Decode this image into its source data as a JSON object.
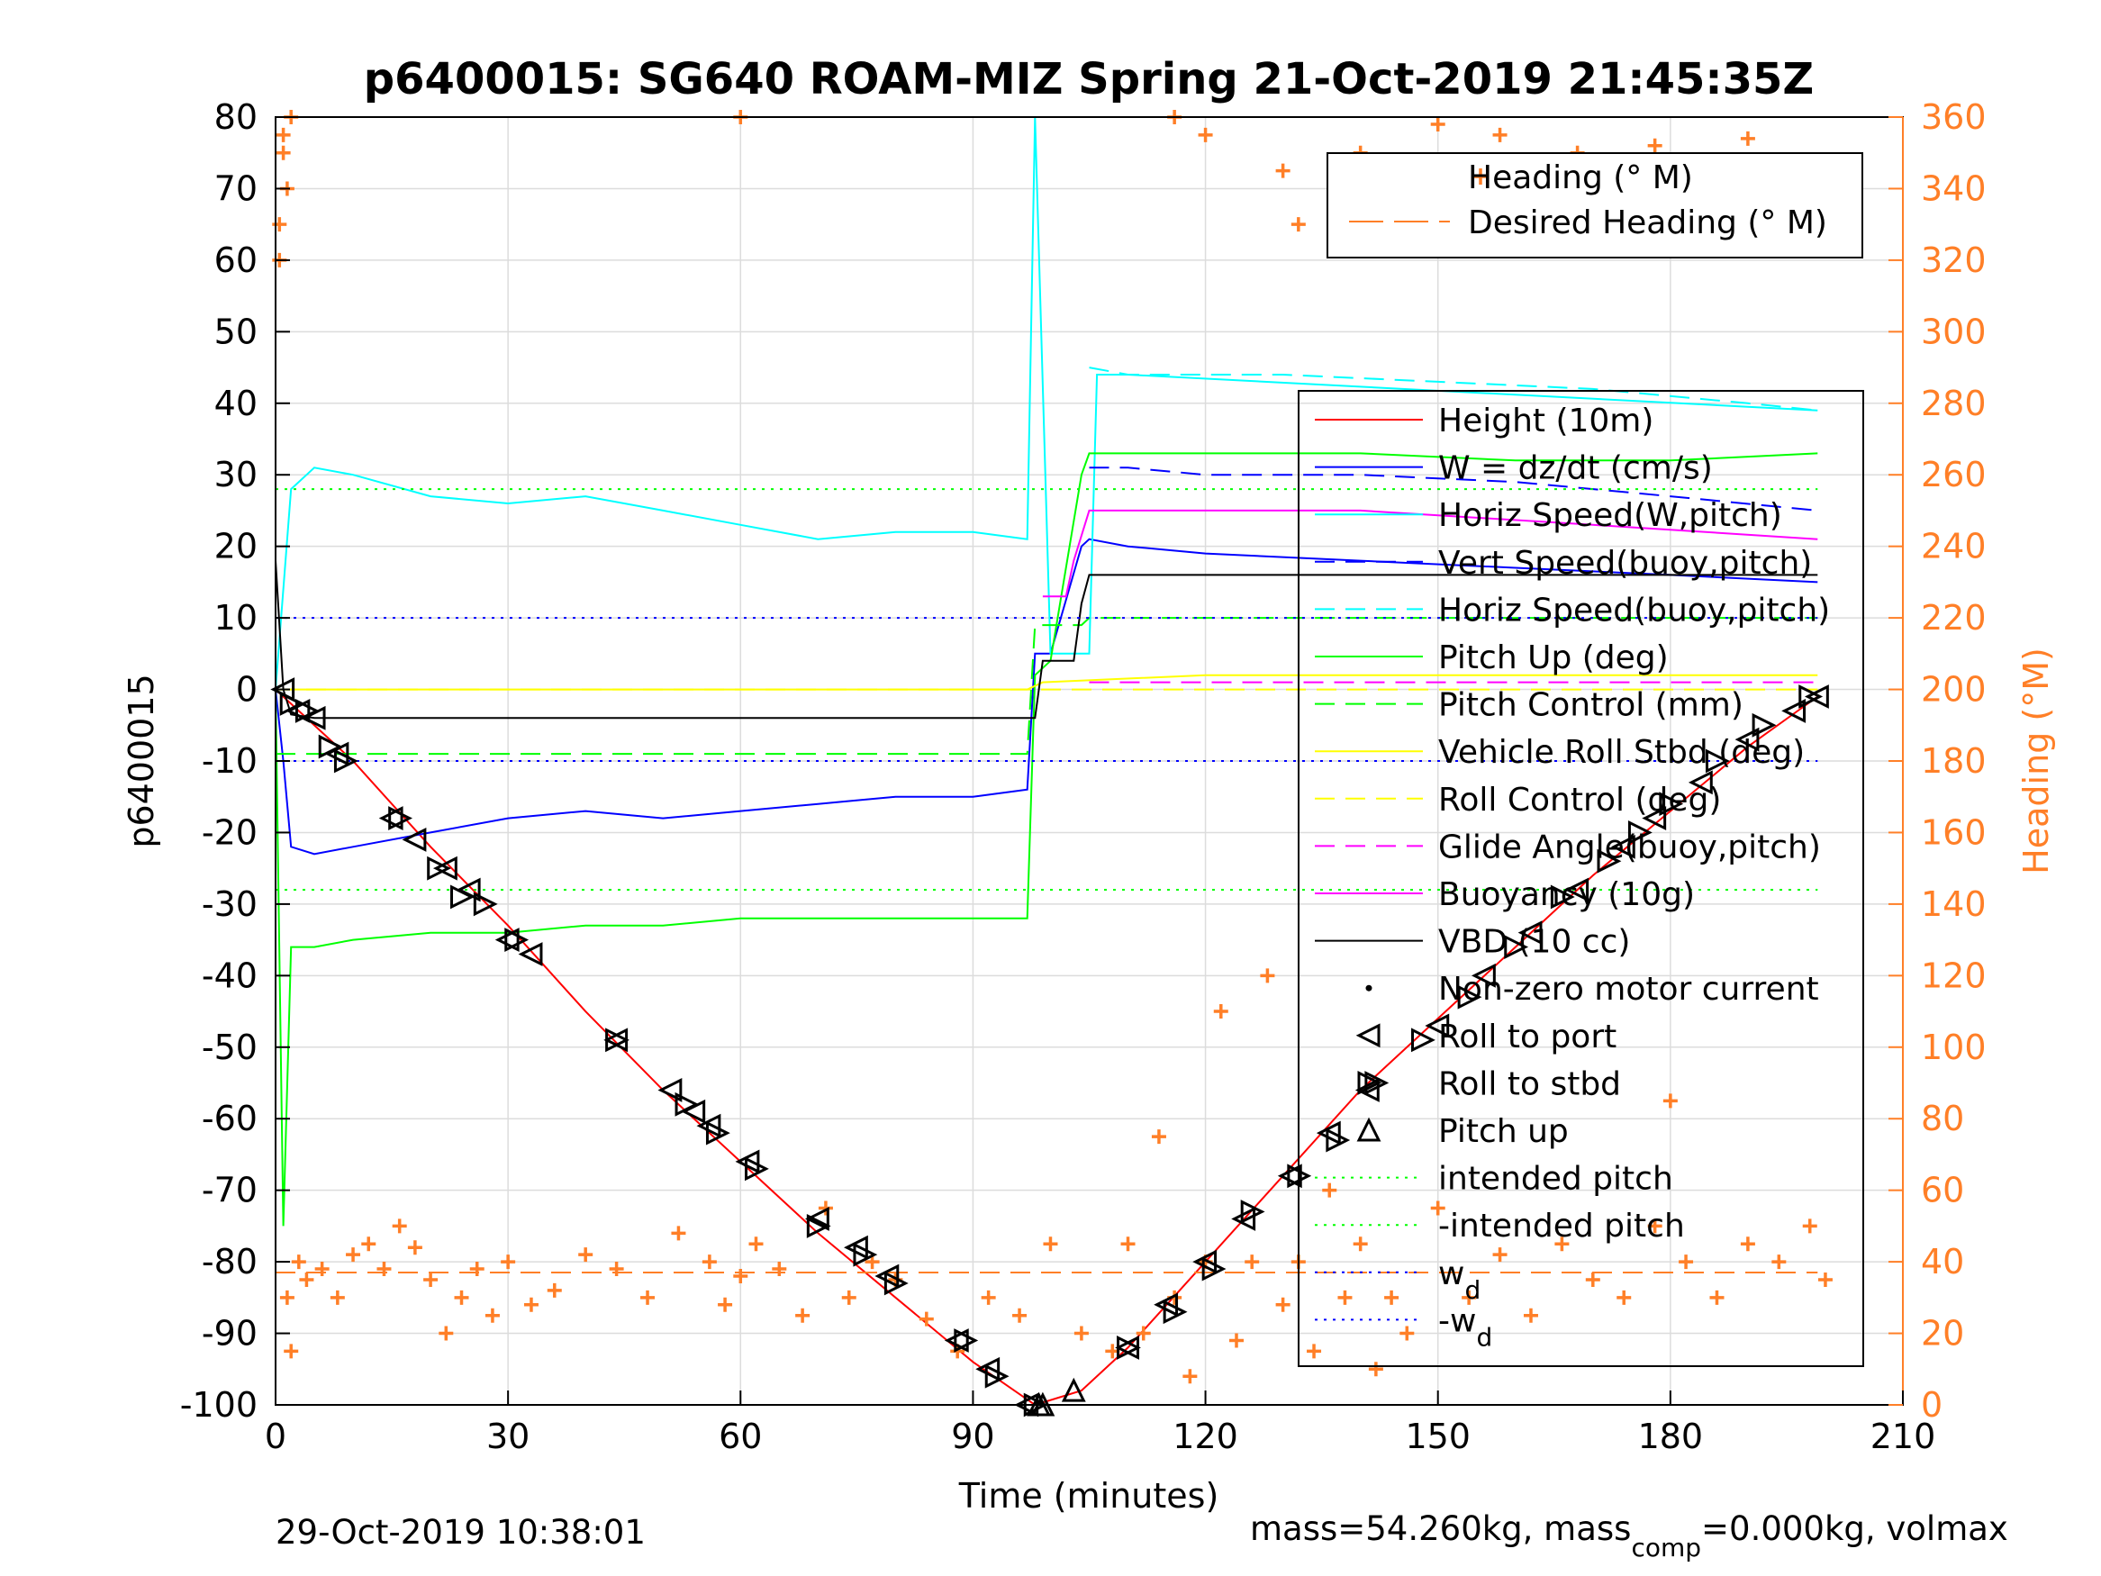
{
  "chart_data": {
    "type": "line",
    "title": "p6400015: SG640 ROAM-MIZ Spring 21-Oct-2019 21:45:35Z",
    "xlabel": "Time (minutes)",
    "ylabel_left": "p6400015",
    "ylabel_right": "Heading (°M)",
    "xlim": [
      0,
      210
    ],
    "ylim_left": [
      -100,
      80
    ],
    "ylim_right": [
      0,
      360
    ],
    "xticks": [
      0,
      30,
      60,
      90,
      120,
      150,
      180,
      210
    ],
    "xtick_labels": [
      "0",
      "30",
      "60",
      "90",
      "120",
      "150",
      "180",
      "210"
    ],
    "yticks_left": [
      80,
      70,
      60,
      50,
      40,
      30,
      20,
      10,
      0,
      -10,
      -20,
      -30,
      -40,
      -50,
      -60,
      -70,
      -80,
      -90,
      -100
    ],
    "ytick_labels_left": [
      "80",
      "70",
      "60",
      "50",
      "40",
      "30",
      "20",
      "10",
      "0",
      "-10",
      "-20",
      "-30",
      "-40",
      "-50",
      "-60",
      "-70",
      "-80",
      "-90",
      "-100"
    ],
    "yticks_right": [
      360,
      340,
      320,
      300,
      280,
      260,
      240,
      220,
      200,
      180,
      160,
      140,
      120,
      100,
      80,
      60,
      40,
      20,
      0
    ],
    "ytick_labels_right": [
      "360",
      "340",
      "320",
      "300",
      "280",
      "260",
      "240",
      "220",
      "200",
      "180",
      "160",
      "140",
      "120",
      "100",
      "80",
      "60",
      "40",
      "20",
      "0"
    ],
    "grid": true,
    "heading_legend_position": "top-right",
    "main_legend_position": "right",
    "colors": {
      "height": "#ff0000",
      "w": "#0000ff",
      "horiz_speed_w": "#00ffff",
      "vert_speed_buoy": "#0000ff",
      "horiz_speed_buoy": "#00ffff",
      "pitch_up": "#00ff00",
      "pitch_control": "#00ff00",
      "roll": "#ffff00",
      "roll_control": "#ffff00",
      "glide_angle": "#ff00ff",
      "buoyancy": "#ff00ff",
      "vbd": "#000000",
      "heading": "#ff7f27"
    },
    "heading_legend": [
      {
        "label": "Heading (° M)",
        "style": "plus",
        "color": "#ff7f27"
      },
      {
        "label": "Desired Heading (° M)",
        "style": "dashed",
        "color": "#ff7f27"
      }
    ],
    "legend": [
      {
        "label": "Height (10m)",
        "style": "solid",
        "color": "#ff0000"
      },
      {
        "label": "W = dz/dt (cm/s)",
        "style": "solid",
        "color": "#0000ff"
      },
      {
        "label": "Horiz Speed(W,pitch)",
        "style": "solid",
        "color": "#00ffff"
      },
      {
        "label": "Vert Speed(buoy,pitch)",
        "style": "dashed",
        "color": "#0000ff"
      },
      {
        "label": "Horiz Speed(buoy,pitch)",
        "style": "dashed",
        "color": "#00ffff"
      },
      {
        "label": "Pitch Up (deg)",
        "style": "solid",
        "color": "#00ff00"
      },
      {
        "label": "Pitch Control (mm)",
        "style": "dashed",
        "color": "#00ff00"
      },
      {
        "label": "Vehicle Roll Stbd (deg)",
        "style": "solid",
        "color": "#ffff00"
      },
      {
        "label": "Roll Control (deg)",
        "style": "dashed",
        "color": "#ffff00"
      },
      {
        "label": "Glide Angle(buoy,pitch)",
        "style": "dashed",
        "color": "#ff00ff"
      },
      {
        "label": "Buoyancy (10g)",
        "style": "solid",
        "color": "#ff00ff"
      },
      {
        "label": "VBD (10 cc)",
        "style": "solid",
        "color": "#000000"
      },
      {
        "label": "Non-zero motor current",
        "style": "dot",
        "color": "#000000"
      },
      {
        "label": "Roll to port",
        "style": "tri-left",
        "color": "#000000"
      },
      {
        "label": "Roll to stbd",
        "style": "tri-right",
        "color": "#000000"
      },
      {
        "label": "Pitch up",
        "style": "tri-up",
        "color": "#000000"
      },
      {
        "label": "intended pitch",
        "style": "dotted",
        "color": "#00ff00"
      },
      {
        "label": "-intended pitch",
        "style": "dotted",
        "color": "#00ff00"
      },
      {
        "label": "w",
        "sub": "d",
        "style": "dotted",
        "color": "#0000ff"
      },
      {
        "label": "-w",
        "sub": "d",
        "style": "dotted",
        "color": "#0000ff"
      }
    ],
    "series": [
      {
        "name": "Height (10m)",
        "axis": "left",
        "style": "solid",
        "color": "#ff0000",
        "x": [
          0,
          10,
          20,
          30,
          40,
          50,
          60,
          70,
          80,
          90,
          98,
          104,
          110,
          120,
          130,
          140,
          150,
          160,
          170,
          180,
          190,
          199
        ],
        "y": [
          0,
          -10,
          -22,
          -33,
          -45,
          -56,
          -66,
          -76,
          -85,
          -94,
          -100,
          -98,
          -92,
          -80,
          -68,
          -56,
          -46,
          -36,
          -26,
          -17,
          -8,
          -1
        ]
      },
      {
        "name": "W = dz/dt (cm/s)",
        "axis": "left",
        "style": "solid",
        "color": "#0000ff",
        "x": [
          0,
          1,
          2,
          5,
          10,
          20,
          30,
          40,
          50,
          60,
          70,
          80,
          90,
          97,
          98,
          100,
          104,
          105,
          110,
          120,
          140,
          160,
          180,
          199
        ],
        "y": [
          0,
          -10,
          -22,
          -23,
          -22,
          -20,
          -18,
          -17,
          -18,
          -17,
          -16,
          -15,
          -15,
          -14,
          5,
          5,
          20,
          21,
          20,
          19,
          18,
          17,
          16,
          15
        ]
      },
      {
        "name": "Horiz Speed(W,pitch)",
        "axis": "left",
        "style": "solid",
        "color": "#00ffff",
        "x": [
          0,
          2,
          5,
          10,
          20,
          30,
          40,
          50,
          60,
          70,
          80,
          90,
          97,
          98,
          100,
          105,
          106,
          110,
          199
        ],
        "y": [
          0,
          28,
          31,
          30,
          27,
          26,
          27,
          25,
          23,
          21,
          22,
          22,
          21,
          80,
          5,
          5,
          44,
          44,
          39
        ]
      },
      {
        "name": "Vert Speed(buoy,pitch)",
        "axis": "left",
        "style": "dashed",
        "color": "#0000ff",
        "x": [
          105,
          110,
          120,
          140,
          160,
          180,
          199
        ],
        "y": [
          31,
          31,
          30,
          30,
          29,
          27,
          25
        ]
      },
      {
        "name": "Horiz Speed(buoy,pitch)",
        "axis": "left",
        "style": "dashed",
        "color": "#00ffff",
        "x": [
          105,
          110,
          130,
          150,
          170,
          190,
          199
        ],
        "y": [
          45,
          44,
          44,
          43,
          42,
          40,
          39
        ]
      },
      {
        "name": "Pitch Up (deg)",
        "axis": "left",
        "style": "solid",
        "color": "#00ff00",
        "x": [
          0,
          1,
          2,
          5,
          10,
          20,
          30,
          40,
          50,
          60,
          70,
          80,
          90,
          97,
          98,
          100,
          104,
          105,
          110,
          120,
          140,
          160,
          180,
          199
        ],
        "y": [
          0,
          -75,
          -36,
          -36,
          -35,
          -34,
          -34,
          -33,
          -33,
          -32,
          -32,
          -32,
          -32,
          -32,
          2,
          4,
          30,
          33,
          33,
          33,
          33,
          32,
          32,
          33
        ]
      },
      {
        "name": "Pitch Control (mm)",
        "axis": "left",
        "style": "dashed",
        "color": "#00ff00",
        "x": [
          0,
          97,
          98,
          104,
          105,
          199
        ],
        "y": [
          -9,
          -9,
          9,
          9,
          10,
          10
        ]
      },
      {
        "name": "Vehicle Roll Stbd (deg)",
        "axis": "left",
        "style": "solid",
        "color": "#ffff00",
        "x": [
          0,
          20,
          40,
          60,
          80,
          97,
          99,
          120,
          140,
          160,
          180,
          199
        ],
        "y": [
          0,
          0,
          0,
          0,
          0,
          0,
          1,
          2,
          2,
          2,
          2,
          2
        ]
      },
      {
        "name": "Roll Control (deg)",
        "axis": "left",
        "style": "dashed",
        "color": "#ffff00",
        "x": [
          0,
          199
        ],
        "y": [
          0,
          0
        ]
      },
      {
        "name": "Glide Angle(buoy,pitch)",
        "axis": "left",
        "style": "dashed",
        "color": "#ff00ff",
        "x": [
          105,
          199
        ],
        "y": [
          1,
          1
        ]
      },
      {
        "name": "Buoyancy (10g)",
        "axis": "left",
        "style": "solid",
        "color": "#ff00ff",
        "x": [
          99,
          102,
          103,
          105,
          110,
          140,
          170,
          199
        ],
        "y": [
          13,
          13,
          18,
          25,
          25,
          25,
          23,
          21
        ]
      },
      {
        "name": "VBD (10 cc)",
        "axis": "left",
        "style": "solid",
        "color": "#000000",
        "x": [
          0,
          1,
          2,
          5,
          30,
          60,
          90,
          98,
          99,
          103,
          104,
          105,
          110,
          199
        ],
        "y": [
          18,
          0,
          -3.5,
          -4,
          -4,
          -4,
          -4,
          -4,
          4,
          4,
          12,
          16,
          16,
          16
        ]
      },
      {
        "name": "intended pitch",
        "axis": "left",
        "style": "dotted",
        "color": "#00ff00",
        "x": [
          0,
          199
        ],
        "y": [
          28,
          28
        ]
      },
      {
        "name": "-intended pitch",
        "axis": "left",
        "style": "dotted",
        "color": "#00ff00",
        "x": [
          0,
          199
        ],
        "y": [
          -28,
          -28
        ]
      },
      {
        "name": "w_d",
        "axis": "left",
        "style": "dotted",
        "color": "#0000ff",
        "x": [
          0,
          199
        ],
        "y": [
          10,
          10
        ]
      },
      {
        "name": "-w_d",
        "axis": "left",
        "style": "dotted",
        "color": "#0000ff",
        "x": [
          0,
          199
        ],
        "y": [
          -10,
          -10
        ]
      },
      {
        "name": "Desired Heading (° M)",
        "axis": "right",
        "style": "dashed",
        "color": "#ff7f27",
        "x": [
          0,
          199
        ],
        "y": [
          37,
          37
        ]
      }
    ],
    "heading_points": {
      "x": [
        0.5,
        1,
        1.5,
        2,
        3,
        4,
        6,
        8,
        10,
        12,
        14,
        16,
        18,
        20,
        22,
        24,
        26,
        28,
        30,
        33,
        36,
        40,
        44,
        48,
        52,
        56,
        58,
        60,
        62,
        65,
        68,
        71,
        74,
        77,
        80,
        84,
        88,
        92,
        96,
        100,
        104,
        108,
        110,
        112,
        114,
        116,
        118,
        120,
        122,
        124,
        126,
        128,
        130,
        132,
        134,
        136,
        138,
        140,
        142,
        144,
        146,
        150,
        154,
        158,
        162,
        166,
        170,
        174,
        178,
        180,
        182,
        186,
        190,
        194,
        198,
        200,
        60,
        116,
        120,
        130,
        132,
        140,
        150,
        158,
        168,
        178,
        190,
        1.5,
        2,
        0.5,
        1
      ],
      "y": [
        330,
        350,
        30,
        15,
        40,
        35,
        38,
        30,
        42,
        45,
        38,
        50,
        44,
        35,
        20,
        30,
        38,
        25,
        40,
        28,
        32,
        42,
        38,
        30,
        48,
        40,
        28,
        36,
        45,
        38,
        25,
        55,
        30,
        40,
        35,
        24,
        15,
        30,
        25,
        45,
        20,
        15,
        45,
        20,
        75,
        30,
        8,
        40,
        110,
        18,
        40,
        120,
        28,
        40,
        15,
        60,
        30,
        45,
        10,
        30,
        20,
        55,
        30,
        42,
        25,
        45,
        35,
        30,
        50,
        85,
        40,
        30,
        45,
        40,
        50,
        35,
        360,
        360,
        355,
        345,
        330,
        350,
        358,
        355,
        350,
        352,
        354,
        340,
        360,
        320,
        355
      ]
    },
    "markers": {
      "roll_port": {
        "x": [
          1,
          3,
          5,
          8,
          15,
          18,
          22,
          25,
          30,
          33,
          44,
          51,
          54,
          56,
          61,
          70,
          75,
          79,
          88,
          92,
          97,
          110,
          115,
          120,
          125,
          131,
          136,
          141,
          150,
          156,
          162,
          168,
          174,
          178,
          184,
          190,
          196,
          199
        ],
        "y": [
          0,
          -3,
          -4,
          -9,
          -18,
          -21,
          -25,
          -28,
          -35,
          -37,
          -49,
          -56,
          -59,
          -61,
          -66,
          -74,
          -78,
          -82,
          -91,
          -95,
          -100,
          -92,
          -86,
          -80,
          -74,
          -68,
          -62,
          -56,
          -47,
          -40,
          -34,
          -28,
          -22,
          -18,
          -13,
          -7,
          -3,
          -1
        ]
      },
      "roll_stbd": {
        "x": [
          2,
          4,
          7,
          9,
          16,
          21,
          24,
          27,
          31,
          44,
          53,
          57,
          62,
          70,
          76,
          80,
          89,
          93,
          98,
          110,
          116,
          121,
          126,
          132,
          137,
          142,
          148,
          154,
          160,
          166,
          172,
          176,
          180,
          186,
          192,
          198
        ],
        "y": [
          -2,
          -3,
          -8,
          -10,
          -18,
          -25,
          -29,
          -30,
          -35,
          -49,
          -58,
          -62,
          -67,
          -75,
          -79,
          -83,
          -91,
          -96,
          -100,
          -92,
          -87,
          -81,
          -73,
          -68,
          -63,
          -55,
          -49,
          -43,
          -36,
          -29,
          -24,
          -20,
          -16,
          -10,
          -5,
          -1
        ]
      },
      "pitch_up": {
        "x": [
          98.5,
          99,
          103
        ],
        "y": [
          -100,
          -100,
          -98
        ]
      }
    }
  },
  "footer": {
    "timestamp": "29-Oct-2019 10:38:01",
    "mass_text_a": "mass=54.260kg, mass",
    "mass_sub": "comp",
    "mass_text_b": "=0.000kg, volmax"
  }
}
